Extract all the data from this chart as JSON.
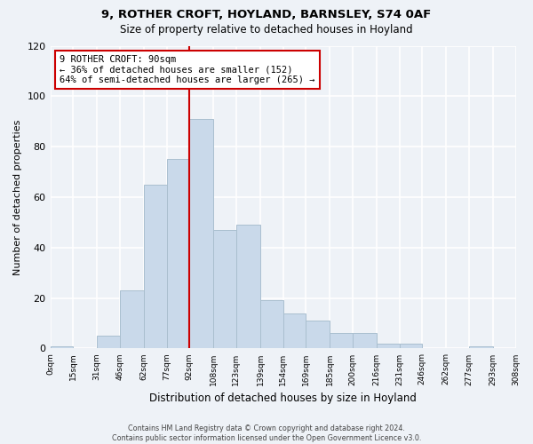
{
  "title": "9, ROTHER CROFT, HOYLAND, BARNSLEY, S74 0AF",
  "subtitle": "Size of property relative to detached houses in Hoyland",
  "xlabel": "Distribution of detached houses by size in Hoyland",
  "ylabel": "Number of detached properties",
  "bin_edges": [
    0,
    15,
    31,
    46,
    62,
    77,
    92,
    108,
    123,
    139,
    154,
    169,
    185,
    200,
    216,
    231,
    246,
    262,
    277,
    293,
    308
  ],
  "bar_heights": [
    1,
    0,
    5,
    23,
    65,
    75,
    91,
    47,
    49,
    19,
    14,
    11,
    6,
    6,
    2,
    2,
    0,
    0,
    1,
    0
  ],
  "bar_color": "#c9d9ea",
  "bar_edgecolor": "#aabfcf",
  "vline_x": 92,
  "vline_color": "#cc0000",
  "ylim": [
    0,
    120
  ],
  "yticks": [
    0,
    20,
    40,
    60,
    80,
    100,
    120
  ],
  "annotation_title": "9 ROTHER CROFT: 90sqm",
  "annotation_line1": "← 36% of detached houses are smaller (152)",
  "annotation_line2": "64% of semi-detached houses are larger (265) →",
  "annotation_box_color": "#ffffff",
  "annotation_border_color": "#cc0000",
  "tick_labels": [
    "0sqm",
    "15sqm",
    "31sqm",
    "46sqm",
    "62sqm",
    "77sqm",
    "92sqm",
    "108sqm",
    "123sqm",
    "139sqm",
    "154sqm",
    "169sqm",
    "185sqm",
    "200sqm",
    "216sqm",
    "231sqm",
    "246sqm",
    "262sqm",
    "277sqm",
    "293sqm",
    "308sqm"
  ],
  "footer_line1": "Contains HM Land Registry data © Crown copyright and database right 2024.",
  "footer_line2": "Contains public sector information licensed under the Open Government Licence v3.0.",
  "background_color": "#eef2f7",
  "grid_color": "#ffffff",
  "title_fontsize": 9.5,
  "subtitle_fontsize": 8.5
}
